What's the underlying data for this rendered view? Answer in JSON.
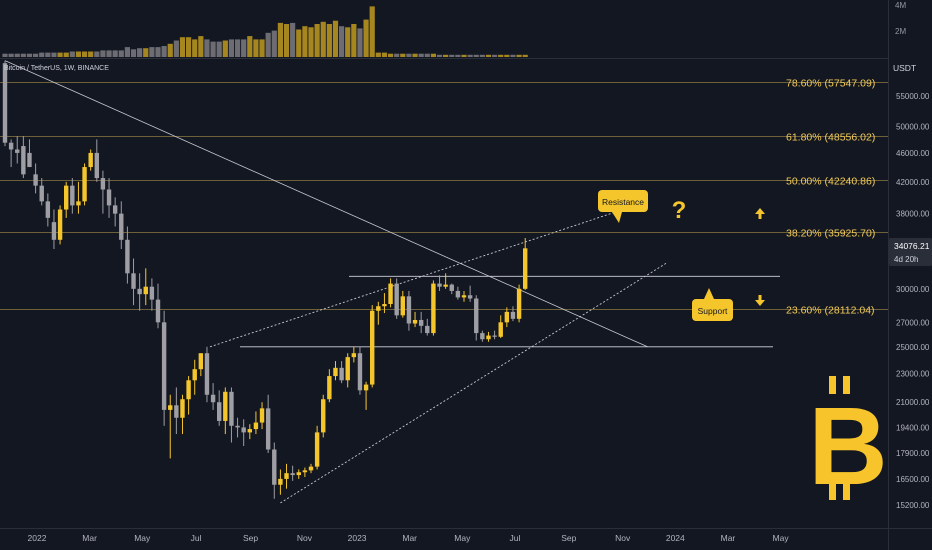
{
  "header": {
    "symbol_label": "Bitcoin / TetherUS, 1W, BINANCE"
  },
  "axis": {
    "currency": "USDT",
    "volume_ticks": [
      "4M",
      "2M"
    ]
  },
  "price_badge": {
    "value": "34076.21",
    "countdown": "4d 20h"
  },
  "annotations": {
    "resistance": "Resistance",
    "support": "Support",
    "question": "?"
  },
  "colors": {
    "background": "#131722",
    "bull": "#f5c62c",
    "bear": "#9e9ea4",
    "fib": "#f2cb57",
    "volume_bull": "#a5861f",
    "volume_bear": "#6c6c72",
    "bitcoin_logo": "#f7c52b"
  },
  "logo": {
    "icon": "bitcoin-logo-icon",
    "glyph": "B"
  },
  "chart_data": {
    "type": "candlestick",
    "ylim": [
      14500,
      62000
    ],
    "y_ticks": [
      55000,
      50000,
      46000,
      42000,
      38000,
      33000,
      30000,
      27000,
      25000,
      23000,
      21000,
      19400,
      17900,
      16500,
      15200
    ],
    "y_tick_labels": [
      "55000.00",
      "50000.00",
      "46000.00",
      "42000.00",
      "38000.00",
      "33000.00",
      "30000.00",
      "27000.00",
      "25000.00",
      "23000.00",
      "21000.00",
      "19400.00",
      "17900.00",
      "16500.00",
      "15200.00"
    ],
    "x_tick_labels": [
      "2022",
      "Mar",
      "May",
      "Jul",
      "Sep",
      "Nov",
      "2023",
      "Mar",
      "May",
      "Jul",
      "Sep",
      "Nov",
      "2024",
      "Mar",
      "May"
    ],
    "x_tick_weeks": [
      0,
      8.6,
      17.2,
      26,
      34.9,
      43.7,
      52.3,
      60.9,
      69.5,
      78.1,
      86.9,
      95.7,
      104.3,
      112.9,
      121.5
    ],
    "fib_levels": [
      {
        "label": "78.60% (57547.09)",
        "price": 57547.09
      },
      {
        "label": "61.80% (48556.02)",
        "price": 48556.02
      },
      {
        "label": "50.00% (42240.86)",
        "price": 42240.86
      },
      {
        "label": "38.20% (35925.70)",
        "price": 35925.7
      },
      {
        "label": "23.60% (28112.04)",
        "price": 28112.04
      }
    ],
    "horizontal_levels": [
      31200,
      25000
    ],
    "last_price": 34076.21,
    "candles": [
      [
        0,
        61000,
        61500,
        47000,
        47500
      ],
      [
        1,
        47500,
        48000,
        44000,
        46500
      ],
      [
        2,
        46500,
        48500,
        44500,
        46000
      ],
      [
        3,
        47000,
        48500,
        42500,
        43000
      ],
      [
        4,
        46000,
        48000,
        44000,
        44000
      ],
      [
        5,
        43000,
        44500,
        40500,
        41500
      ],
      [
        6,
        41500,
        42500,
        39000,
        39500
      ],
      [
        7,
        39500,
        40500,
        36500,
        37500
      ],
      [
        8,
        37000,
        38500,
        34000,
        35000
      ],
      [
        9,
        35000,
        39000,
        34500,
        38500
      ],
      [
        10,
        38500,
        42000,
        37500,
        41500
      ],
      [
        11,
        41500,
        42500,
        38000,
        39000
      ],
      [
        12,
        39000,
        42000,
        38000,
        39500
      ],
      [
        13,
        39500,
        44500,
        39000,
        44000
      ],
      [
        14,
        44000,
        46500,
        43500,
        46000
      ],
      [
        15,
        46000,
        48000,
        42000,
        42500
      ],
      [
        16,
        42500,
        43500,
        38000,
        41000
      ],
      [
        17,
        41000,
        42500,
        37500,
        39000
      ],
      [
        18,
        39000,
        40000,
        36500,
        38000
      ],
      [
        19,
        38000,
        39500,
        34000,
        35000
      ],
      [
        20,
        35000,
        36500,
        30500,
        31500
      ],
      [
        21,
        31500,
        33000,
        28500,
        30000
      ],
      [
        22,
        30000,
        31500,
        28000,
        29500
      ],
      [
        23,
        29500,
        32000,
        28500,
        30200
      ],
      [
        24,
        30200,
        31000,
        28000,
        29000
      ],
      [
        25,
        29000,
        30500,
        26500,
        27000
      ],
      [
        26,
        27000,
        28000,
        19500,
        20500
      ],
      [
        27,
        20500,
        21500,
        17600,
        20800
      ],
      [
        28,
        20800,
        22000,
        19000,
        20000
      ],
      [
        29,
        20000,
        21500,
        19000,
        21200
      ],
      [
        30,
        21200,
        22800,
        20200,
        22500
      ],
      [
        31,
        22500,
        24000,
        21500,
        23300
      ],
      [
        32,
        23300,
        24500,
        22800,
        24500
      ],
      [
        33,
        24500,
        25000,
        21000,
        21500
      ],
      [
        34,
        21500,
        22300,
        20500,
        21000
      ],
      [
        35,
        21000,
        21800,
        19500,
        19800
      ],
      [
        36,
        19800,
        22000,
        19000,
        21700
      ],
      [
        37,
        21700,
        22000,
        18500,
        19500
      ],
      [
        38,
        19500,
        20000,
        18800,
        19400
      ],
      [
        39,
        19400,
        19900,
        18300,
        19100
      ],
      [
        40,
        19100,
        19600,
        18700,
        19300
      ],
      [
        41,
        19300,
        20400,
        19000,
        19700
      ],
      [
        42,
        19700,
        21000,
        19300,
        20600
      ],
      [
        43,
        20600,
        21500,
        17900,
        18100
      ],
      [
        44,
        18100,
        18500,
        15500,
        16200
      ],
      [
        45,
        16200,
        17000,
        15700,
        16500
      ],
      [
        46,
        16500,
        17300,
        16000,
        16800
      ],
      [
        47,
        16800,
        17200,
        16400,
        16700
      ],
      [
        48,
        16700,
        17000,
        16500,
        16850
      ],
      [
        49,
        16850,
        17100,
        16600,
        16950
      ],
      [
        50,
        16950,
        17300,
        16800,
        17150
      ],
      [
        51,
        17150,
        19500,
        17000,
        19100
      ],
      [
        52,
        19100,
        21500,
        18800,
        21200
      ],
      [
        53,
        21200,
        23300,
        21000,
        22800
      ],
      [
        54,
        22800,
        23900,
        22500,
        23400
      ],
      [
        55,
        23400,
        23900,
        22300,
        22500
      ],
      [
        56,
        22500,
        24500,
        22000,
        24200
      ],
      [
        57,
        24200,
        25000,
        23800,
        24500
      ],
      [
        58,
        24500,
        25000,
        21500,
        21800
      ],
      [
        59,
        21800,
        22400,
        20500,
        22200
      ],
      [
        60,
        22200,
        28500,
        22000,
        28000
      ],
      [
        61,
        28000,
        28800,
        26800,
        28400
      ],
      [
        62,
        28400,
        29600,
        27800,
        28600
      ],
      [
        63,
        28600,
        31000,
        28300,
        30500
      ],
      [
        64,
        30500,
        31000,
        27300,
        27600
      ],
      [
        65,
        27600,
        29800,
        27400,
        29300
      ],
      [
        66,
        29300,
        29800,
        26300,
        26900
      ],
      [
        67,
        26900,
        27900,
        26600,
        27200
      ],
      [
        68,
        27200,
        27900,
        26100,
        26700
      ],
      [
        69,
        26700,
        27300,
        25900,
        26100
      ],
      [
        70,
        26100,
        30800,
        25900,
        30500
      ],
      [
        71,
        30500,
        31300,
        29800,
        30200
      ],
      [
        72,
        30200,
        31500,
        30000,
        30400
      ],
      [
        73,
        30400,
        30500,
        29500,
        29800
      ],
      [
        74,
        29800,
        30200,
        29000,
        29200
      ],
      [
        75,
        29200,
        29800,
        28800,
        29400
      ],
      [
        76,
        29400,
        30300,
        28800,
        29100
      ],
      [
        77,
        29100,
        29400,
        25500,
        26100
      ],
      [
        78,
        26100,
        26300,
        25400,
        25600
      ],
      [
        79,
        25600,
        26200,
        25400,
        25900
      ],
      [
        80,
        25900,
        26300,
        25600,
        25800
      ],
      [
        81,
        25800,
        27600,
        25700,
        27000
      ],
      [
        82,
        27000,
        28300,
        26600,
        27900
      ],
      [
        83,
        27900,
        28400,
        27100,
        27300
      ],
      [
        84,
        27300,
        30400,
        27000,
        30000
      ],
      [
        85,
        30000,
        35200,
        29900,
        34076
      ]
    ],
    "volume": [
      0.3,
      0.3,
      0.3,
      0.3,
      0.3,
      0.3,
      0.4,
      0.4,
      0.4,
      0.4,
      0.4,
      0.5,
      0.5,
      0.5,
      0.5,
      0.5,
      0.6,
      0.6,
      0.6,
      0.6,
      0.9,
      0.7,
      0.8,
      0.8,
      0.9,
      0.9,
      1.0,
      1.2,
      1.5,
      1.8,
      1.8,
      1.6,
      1.9,
      1.6,
      1.4,
      1.4,
      1.5,
      1.6,
      1.6,
      1.6,
      1.9,
      1.6,
      1.6,
      2.2,
      2.4,
      3.1,
      3.0,
      3.1,
      2.5,
      2.8,
      2.7,
      3.0,
      3.2,
      3.0,
      3.3,
      2.8,
      2.7,
      3.0,
      2.6,
      3.4,
      4.6,
      0.4,
      0.4,
      0.3,
      0.3,
      0.3,
      0.3,
      0.3,
      0.3,
      0.3,
      0.3,
      0.2,
      0.2,
      0.2,
      0.2,
      0.2,
      0.2,
      0.2,
      0.2,
      0.2,
      0.2,
      0.2,
      0.2,
      0.2,
      0.2,
      0.2
    ],
    "trendlines": [
      {
        "style": "solid",
        "from": [
          0,
          61500
        ],
        "to": [
          105,
          25000
        ]
      },
      {
        "style": "dashed",
        "from": [
          33.5,
          25000
        ],
        "to": [
          105,
          39500
        ]
      },
      {
        "style": "dashed",
        "from": [
          45,
          15300
        ],
        "to": [
          108,
          32500
        ]
      }
    ]
  }
}
